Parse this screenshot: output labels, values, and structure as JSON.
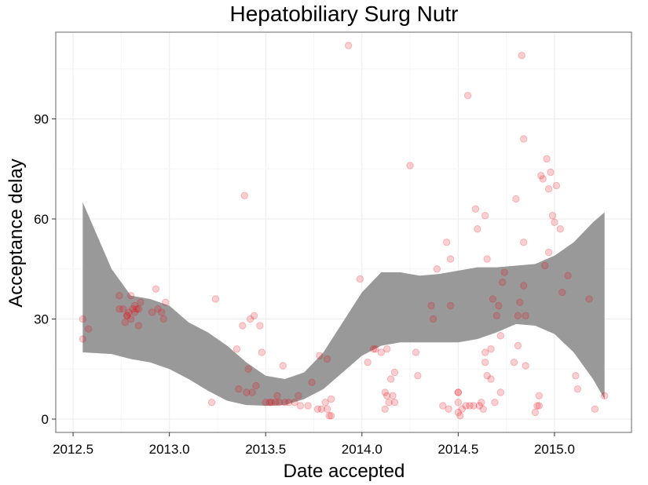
{
  "chart_data": {
    "type": "scatter",
    "title": "Hepatobiliary Surg Nutr",
    "xlabel": "Date accepted",
    "ylabel": "Acceptance delay",
    "xlim": [
      2012.41,
      2015.4
    ],
    "ylim": [
      -4,
      116
    ],
    "xticks": [
      2012.5,
      2013.0,
      2013.5,
      2014.0,
      2014.5,
      2015.0
    ],
    "xtick_labels": [
      "2012.5",
      "2013.0",
      "2013.5",
      "2014.0",
      "2014.5",
      "2015.0"
    ],
    "yticks": [
      0,
      30,
      60,
      90
    ],
    "ytick_labels": [
      "0",
      "30",
      "60",
      "90"
    ],
    "grid": true,
    "point_color": "#e8101a",
    "point_opacity": 0.2,
    "band_color": "#999999",
    "points": [
      [
        2012.55,
        30
      ],
      [
        2012.55,
        24
      ],
      [
        2012.58,
        27
      ],
      [
        2012.74,
        37
      ],
      [
        2012.74,
        33
      ],
      [
        2012.76,
        33
      ],
      [
        2012.77,
        29
      ],
      [
        2012.78,
        31
      ],
      [
        2012.78,
        31
      ],
      [
        2012.79,
        32
      ],
      [
        2012.8,
        30
      ],
      [
        2012.8,
        37
      ],
      [
        2012.81,
        33
      ],
      [
        2012.82,
        32
      ],
      [
        2012.82,
        34
      ],
      [
        2012.83,
        33
      ],
      [
        2012.84,
        33
      ],
      [
        2012.84,
        28
      ],
      [
        2012.85,
        35
      ],
      [
        2012.91,
        32
      ],
      [
        2012.93,
        39
      ],
      [
        2012.94,
        33
      ],
      [
        2012.96,
        32
      ],
      [
        2012.97,
        30
      ],
      [
        2012.98,
        35
      ],
      [
        2013.22,
        5
      ],
      [
        2013.24,
        36
      ],
      [
        2013.35,
        21
      ],
      [
        2013.36,
        9
      ],
      [
        2013.38,
        28
      ],
      [
        2013.39,
        67
      ],
      [
        2013.4,
        8
      ],
      [
        2013.41,
        15
      ],
      [
        2013.42,
        30
      ],
      [
        2013.43,
        8
      ],
      [
        2013.44,
        31
      ],
      [
        2013.45,
        10
      ],
      [
        2013.47,
        28
      ],
      [
        2013.48,
        20
      ],
      [
        2013.5,
        5
      ],
      [
        2013.52,
        5
      ],
      [
        2013.53,
        5
      ],
      [
        2013.55,
        5
      ],
      [
        2013.56,
        7
      ],
      [
        2013.57,
        5
      ],
      [
        2013.59,
        16
      ],
      [
        2013.6,
        5
      ],
      [
        2013.62,
        5
      ],
      [
        2013.65,
        5
      ],
      [
        2013.67,
        7
      ],
      [
        2013.68,
        4
      ],
      [
        2013.72,
        4
      ],
      [
        2013.74,
        11
      ],
      [
        2013.77,
        3
      ],
      [
        2013.78,
        19
      ],
      [
        2013.79,
        3
      ],
      [
        2013.81,
        5
      ],
      [
        2013.82,
        3
      ],
      [
        2013.82,
        18
      ],
      [
        2013.83,
        1
      ],
      [
        2013.84,
        1
      ],
      [
        2013.84,
        6
      ],
      [
        2013.93,
        112
      ],
      [
        2013.99,
        42
      ],
      [
        2014.03,
        17
      ],
      [
        2014.06,
        21
      ],
      [
        2014.07,
        21
      ],
      [
        2014.1,
        20
      ],
      [
        2014.12,
        8
      ],
      [
        2014.12,
        3
      ],
      [
        2014.13,
        21
      ],
      [
        2014.13,
        7
      ],
      [
        2014.14,
        5
      ],
      [
        2014.15,
        12
      ],
      [
        2014.16,
        7
      ],
      [
        2014.17,
        5
      ],
      [
        2014.17,
        14
      ],
      [
        2014.25,
        76
      ],
      [
        2014.28,
        20
      ],
      [
        2014.29,
        13
      ],
      [
        2014.36,
        34
      ],
      [
        2014.37,
        30
      ],
      [
        2014.39,
        45
      ],
      [
        2014.42,
        4
      ],
      [
        2014.44,
        53
      ],
      [
        2014.45,
        3
      ],
      [
        2014.46,
        34
      ],
      [
        2014.46,
        48
      ],
      [
        2014.5,
        8
      ],
      [
        2014.5,
        8
      ],
      [
        2014.5,
        5
      ],
      [
        2014.5,
        2
      ],
      [
        2014.51,
        1
      ],
      [
        2014.52,
        3
      ],
      [
        2014.54,
        4
      ],
      [
        2014.55,
        97
      ],
      [
        2014.56,
        4
      ],
      [
        2014.58,
        4
      ],
      [
        2014.59,
        63
      ],
      [
        2014.6,
        57
      ],
      [
        2014.61,
        4
      ],
      [
        2014.62,
        5
      ],
      [
        2014.63,
        3
      ],
      [
        2014.64,
        20
      ],
      [
        2014.64,
        17
      ],
      [
        2014.64,
        61
      ],
      [
        2014.65,
        48
      ],
      [
        2014.65,
        13
      ],
      [
        2014.67,
        12
      ],
      [
        2014.67,
        21
      ],
      [
        2014.68,
        36
      ],
      [
        2014.69,
        5
      ],
      [
        2014.7,
        31
      ],
      [
        2014.71,
        34
      ],
      [
        2014.72,
        25
      ],
      [
        2014.72,
        8
      ],
      [
        2014.73,
        41
      ],
      [
        2014.74,
        44
      ],
      [
        2014.79,
        17
      ],
      [
        2014.8,
        66
      ],
      [
        2014.81,
        31
      ],
      [
        2014.81,
        22
      ],
      [
        2014.82,
        35
      ],
      [
        2014.83,
        109
      ],
      [
        2014.84,
        84
      ],
      [
        2014.84,
        53
      ],
      [
        2014.84,
        40
      ],
      [
        2014.85,
        16
      ],
      [
        2014.85,
        31
      ],
      [
        2014.9,
        2
      ],
      [
        2014.91,
        4
      ],
      [
        2014.92,
        7
      ],
      [
        2014.92,
        4
      ],
      [
        2014.93,
        73
      ],
      [
        2014.94,
        72
      ],
      [
        2014.95,
        46
      ],
      [
        2014.96,
        78
      ],
      [
        2014.97,
        69
      ],
      [
        2014.97,
        50
      ],
      [
        2014.98,
        74
      ],
      [
        2014.99,
        61
      ],
      [
        2015.0,
        59
      ],
      [
        2015.01,
        70
      ],
      [
        2015.03,
        57
      ],
      [
        2015.04,
        38
      ],
      [
        2015.07,
        43
      ],
      [
        2015.11,
        13
      ],
      [
        2015.12,
        9
      ],
      [
        2015.18,
        36
      ],
      [
        2015.21,
        3
      ],
      [
        2015.26,
        7
      ]
    ],
    "band": {
      "x": [
        2012.55,
        2012.7,
        2012.8,
        2012.9,
        2013.0,
        2013.1,
        2013.2,
        2013.3,
        2013.4,
        2013.5,
        2013.6,
        2013.7,
        2013.8,
        2013.9,
        2014.0,
        2014.1,
        2014.2,
        2014.3,
        2014.4,
        2014.5,
        2014.6,
        2014.7,
        2014.8,
        2014.9,
        2015.0,
        2015.1,
        2015.2,
        2015.26
      ],
      "upper": [
        65,
        45,
        37,
        36,
        34,
        29,
        26,
        22,
        17,
        13,
        12,
        14,
        20,
        29,
        38,
        44,
        44,
        43,
        43.5,
        44.5,
        45.5,
        45.5,
        46,
        46.5,
        49,
        53,
        59,
        62
      ],
      "lower": [
        20,
        19.5,
        18,
        17,
        15,
        12,
        8.5,
        5.5,
        4.2,
        4,
        4.2,
        6,
        9,
        14,
        19,
        22,
        23,
        23,
        23,
        23,
        24,
        26,
        28.5,
        28,
        25.5,
        20,
        12,
        6
      ]
    }
  }
}
